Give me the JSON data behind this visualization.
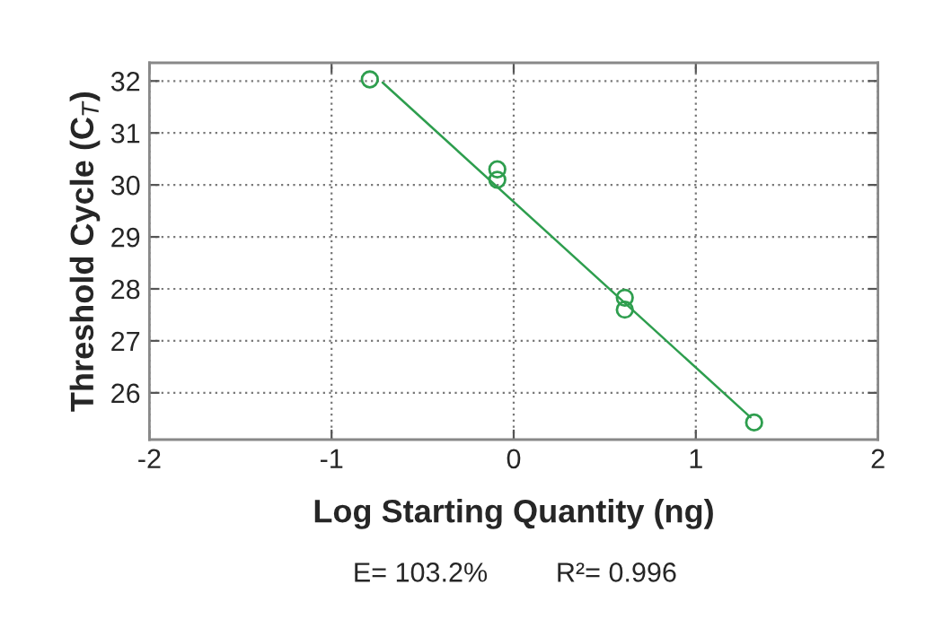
{
  "chart_data": {
    "type": "scatter",
    "xlabel": "Log Starting Quantity (ng)",
    "ylabel": "Threshold Cycle (C$_{T}$)",
    "annotations": [
      "E= 103.2%",
      "R²= 0.996"
    ],
    "xlim": [
      -2,
      2
    ],
    "xticks": [
      -2,
      -1,
      0,
      1,
      2
    ],
    "ylim": [
      25.1,
      32.35
    ],
    "yticks": [
      26,
      27,
      28,
      29,
      30,
      31,
      32
    ],
    "grid": true,
    "series": [
      {
        "marker": "circle",
        "color": "#2e9e4e",
        "x": [
          -0.79,
          -0.09,
          -0.09,
          0.61,
          0.61,
          1.32
        ],
        "values": [
          32.03,
          30.3,
          30.1,
          27.83,
          27.6,
          25.43
        ]
      },
      {
        "type": "line",
        "marker": "none",
        "color": "#2e9e4e",
        "x": [
          -0.72,
          1.3
        ],
        "values": [
          31.97,
          25.53
        ]
      }
    ]
  }
}
